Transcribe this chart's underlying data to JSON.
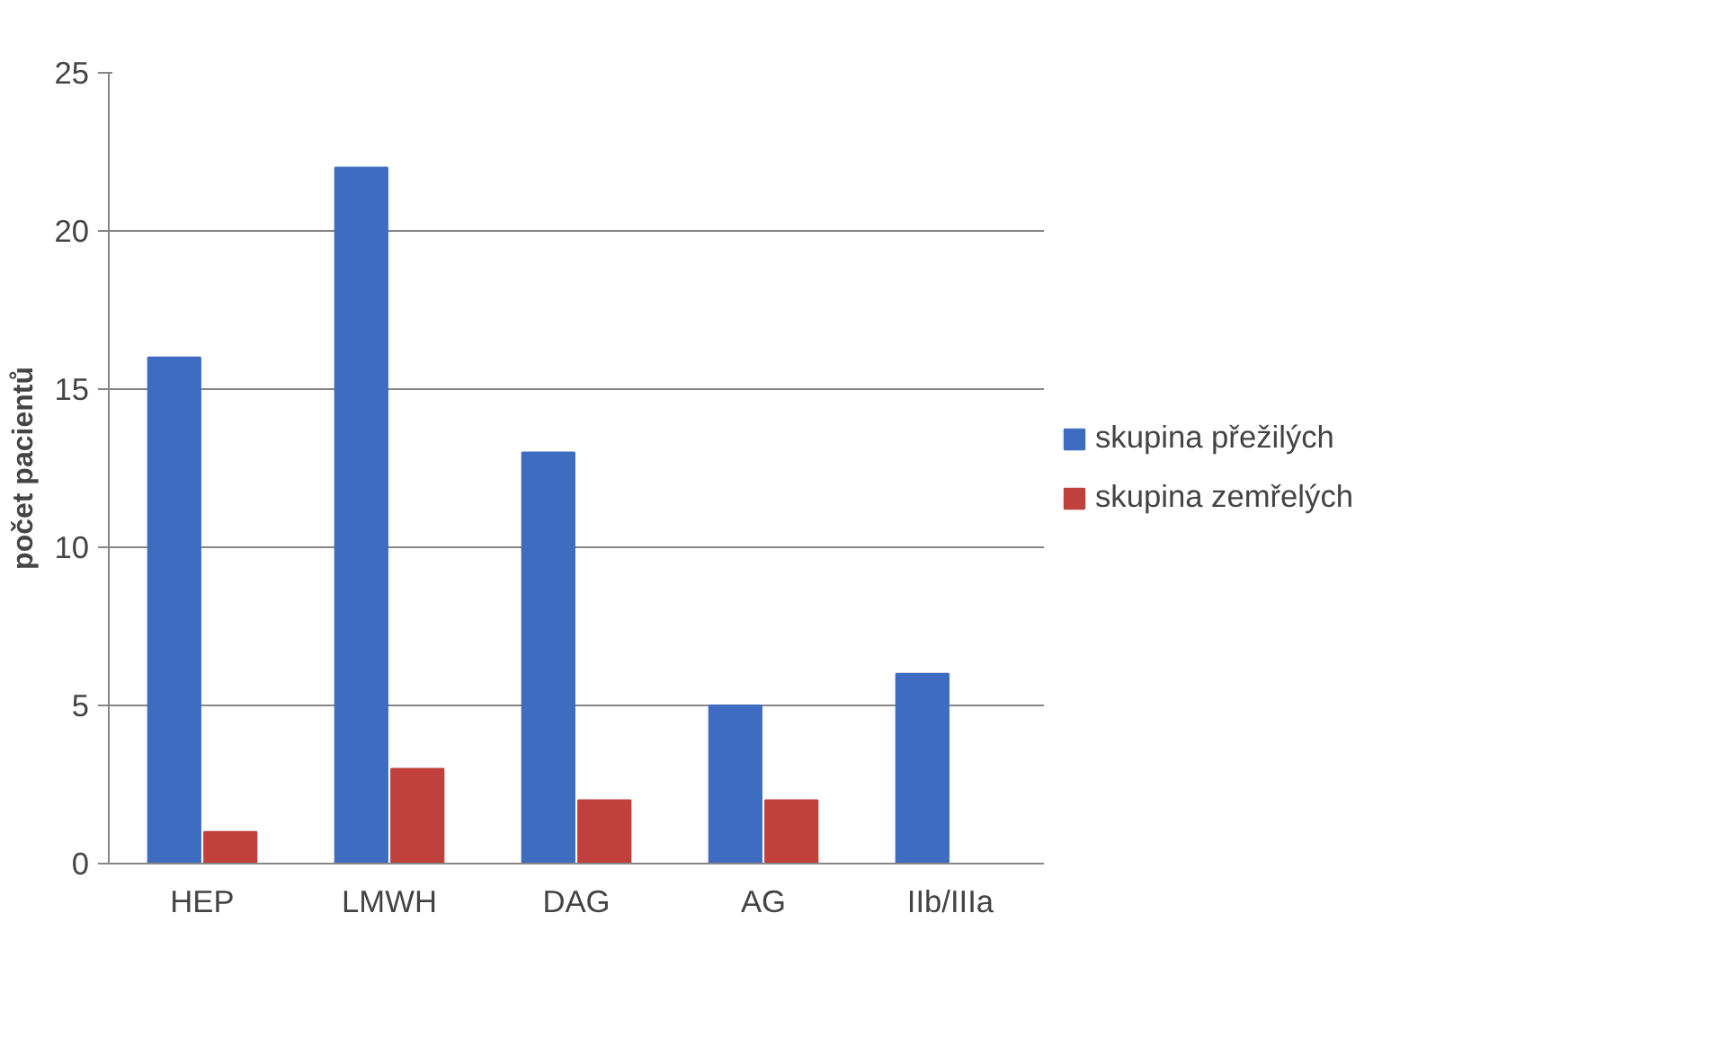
{
  "chart_data": {
    "type": "bar",
    "ylabel": "počet pacientů",
    "categories": [
      "HEP",
      "LMWH",
      "DAG",
      "AG",
      "IIb/IIIa"
    ],
    "series": [
      {
        "name": "skupina přežilých",
        "color": "#3d6cc0",
        "values": [
          16,
          22,
          13,
          5,
          6
        ]
      },
      {
        "name": "skupina zemřelých",
        "color": "#c0403c",
        "values": [
          1,
          3,
          2,
          2,
          null
        ]
      }
    ],
    "ylim": [
      0,
      25
    ],
    "yticks": [
      0,
      5,
      10,
      15,
      20,
      25
    ],
    "grid": "y",
    "legend": "right"
  }
}
